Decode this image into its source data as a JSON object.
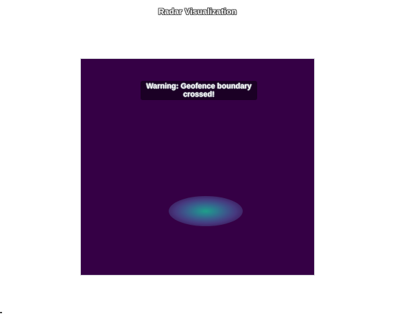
{
  "window": {
    "title": "Radar Visualization"
  },
  "radar": {
    "background_color": "#350045",
    "blip_color": "#1f9e8a",
    "warning": {
      "text": "Warning: Geofence boundary crossed!"
    }
  }
}
